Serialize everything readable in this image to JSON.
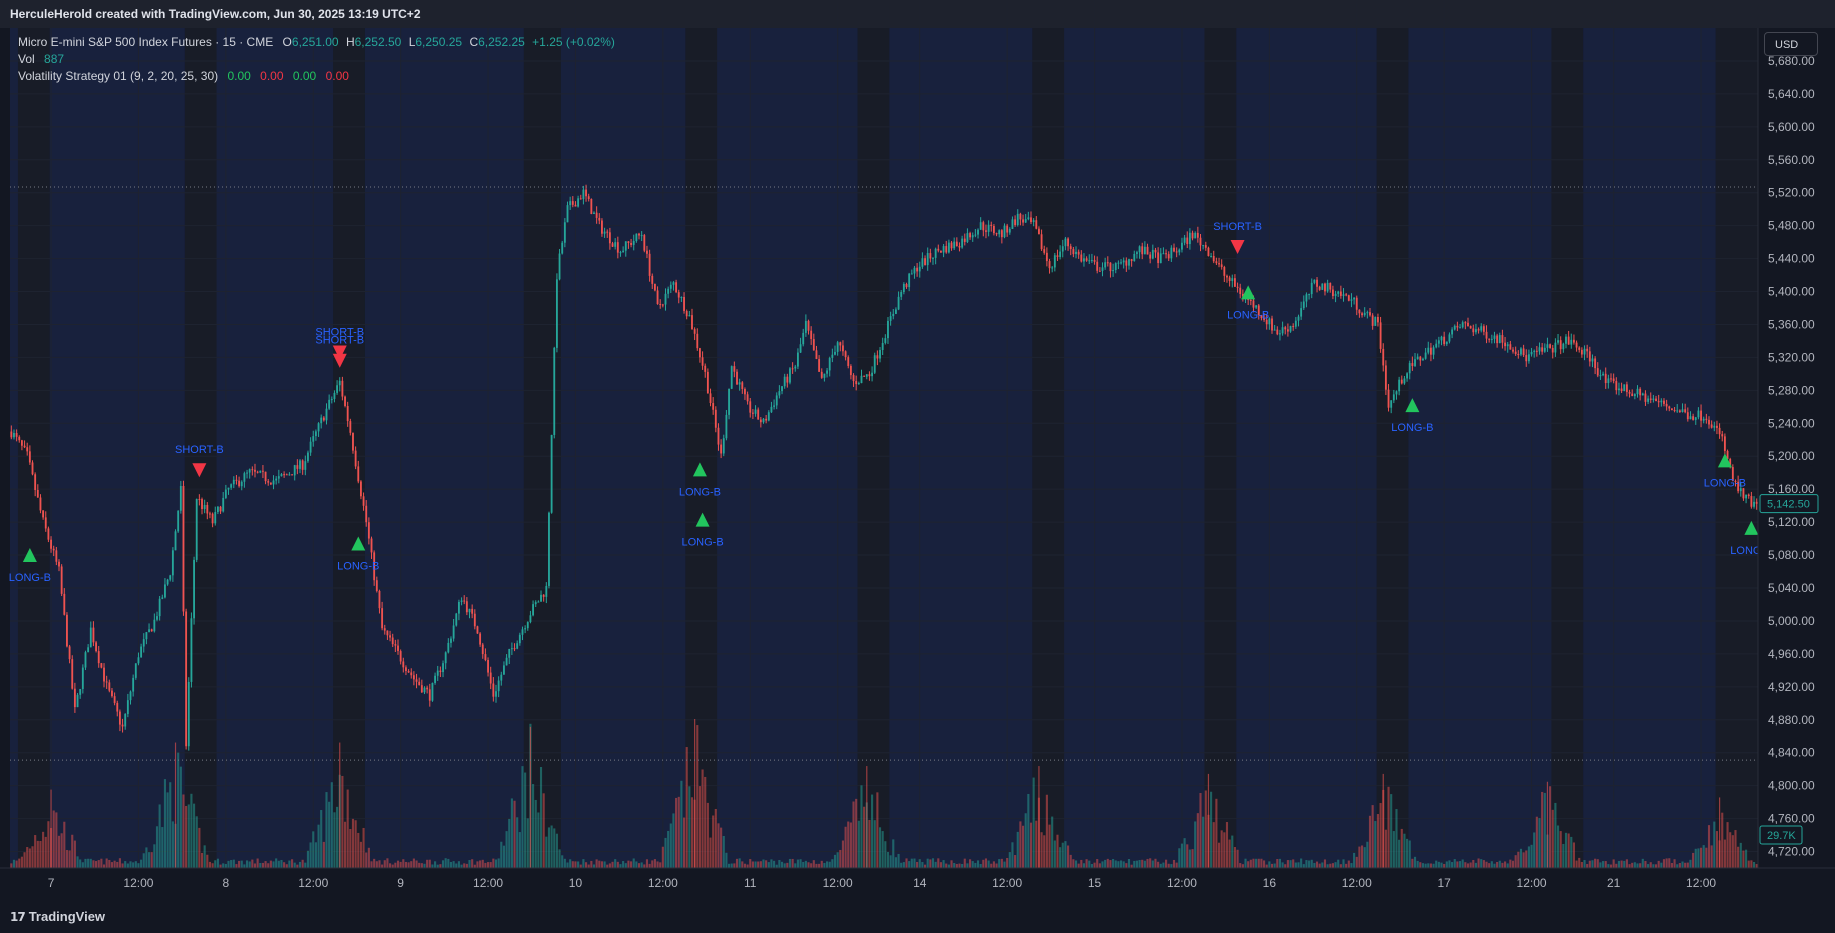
{
  "header": {
    "credit": "HerculeHerold created with TradingView.com, Jun 30, 2025 13:19 UTC+2"
  },
  "legend": {
    "symbol": "Micro E-mini S&P 500 Index Futures · 15 · CME",
    "o_label": "O",
    "o_value": "6,251.00",
    "h_label": "H",
    "h_value": "6,252.50",
    "l_label": "L",
    "l_value": "6,250.25",
    "c_label": "C",
    "c_value": "6,252.25",
    "change": "+1.25 (+0.02%)",
    "vol_label": "Vol",
    "vol_value": "887",
    "strategy": "Volatility Strategy 01 (9, 2, 20, 25, 30)",
    "strategy_values": [
      "0.00",
      "0.00",
      "0.00",
      "0.00"
    ]
  },
  "currency_button": "USD",
  "footer": {
    "brand": "TradingView",
    "logo_glyph": "17"
  },
  "colors": {
    "up": "#26a69a",
    "down": "#ef5350",
    "long_marker": "#22c55e",
    "short_marker": "#f23645",
    "signal_text": "#2962ff",
    "session_band": "#1a2240",
    "grid": "#1e2330"
  },
  "chart_data": {
    "type": "candlestick",
    "y_axis": {
      "range": [
        4700,
        5720
      ],
      "tick_labels": [
        "5,680.00",
        "5,640.00",
        "5,600.00",
        "5,560.00",
        "5,520.00",
        "5,480.00",
        "5,440.00",
        "5,400.00",
        "5,360.00",
        "5,320.00",
        "5,280.00",
        "5,240.00",
        "5,200.00",
        "5,160.00",
        "5,120.00",
        "5,080.00",
        "5,040.00",
        "5,000.00",
        "4,960.00",
        "4,920.00",
        "4,880.00",
        "4,840.00",
        "4,800.00",
        "4,760.00",
        "4,720.00"
      ],
      "tick_values": [
        5680,
        5640,
        5600,
        5560,
        5520,
        5480,
        5440,
        5400,
        5360,
        5320,
        5280,
        5240,
        5200,
        5160,
        5120,
        5080,
        5040,
        5000,
        4960,
        4920,
        4880,
        4840,
        4800,
        4760,
        4720
      ]
    },
    "x_axis": {
      "tick_labels": [
        "7",
        "12:00",
        "8",
        "12:00",
        "9",
        "12:00",
        "10",
        "12:00",
        "11",
        "12:00",
        "14",
        "12:00",
        "15",
        "12:00",
        "16",
        "12:00",
        "17",
        "12:00",
        "21",
        "12:00"
      ],
      "tick_positions_bar_index": [
        15,
        48,
        81,
        114,
        147,
        180,
        213,
        246,
        279,
        312,
        343,
        376,
        409,
        442,
        475,
        508,
        541,
        574,
        605,
        638
      ]
    },
    "last_price_label": "5,142.50",
    "last_volume_label": "29.7K",
    "price_path": [
      [
        0,
        5230
      ],
      [
        6,
        5200
      ],
      [
        12,
        5120
      ],
      [
        18,
        5060
      ],
      [
        24,
        4890
      ],
      [
        30,
        4990
      ],
      [
        36,
        4920
      ],
      [
        42,
        4870
      ],
      [
        48,
        4960
      ],
      [
        54,
        5000
      ],
      [
        60,
        5060
      ],
      [
        64,
        5160
      ],
      [
        66,
        4850
      ],
      [
        70,
        5150
      ],
      [
        76,
        5120
      ],
      [
        82,
        5160
      ],
      [
        90,
        5180
      ],
      [
        100,
        5170
      ],
      [
        110,
        5190
      ],
      [
        118,
        5250
      ],
      [
        124,
        5290
      ],
      [
        128,
        5230
      ],
      [
        134,
        5120
      ],
      [
        140,
        4990
      ],
      [
        146,
        4960
      ],
      [
        152,
        4930
      ],
      [
        158,
        4910
      ],
      [
        164,
        4960
      ],
      [
        170,
        5030
      ],
      [
        176,
        4990
      ],
      [
        182,
        4910
      ],
      [
        188,
        4960
      ],
      [
        196,
        5010
      ],
      [
        202,
        5040
      ],
      [
        206,
        5420
      ],
      [
        210,
        5500
      ],
      [
        216,
        5520
      ],
      [
        222,
        5480
      ],
      [
        230,
        5450
      ],
      [
        238,
        5470
      ],
      [
        244,
        5380
      ],
      [
        250,
        5410
      ],
      [
        256,
        5370
      ],
      [
        262,
        5300
      ],
      [
        268,
        5200
      ],
      [
        272,
        5310
      ],
      [
        278,
        5260
      ],
      [
        284,
        5240
      ],
      [
        290,
        5280
      ],
      [
        296,
        5310
      ],
      [
        300,
        5360
      ],
      [
        306,
        5290
      ],
      [
        312,
        5340
      ],
      [
        318,
        5290
      ],
      [
        324,
        5300
      ],
      [
        330,
        5350
      ],
      [
        336,
        5400
      ],
      [
        342,
        5430
      ],
      [
        350,
        5450
      ],
      [
        358,
        5460
      ],
      [
        366,
        5480
      ],
      [
        374,
        5470
      ],
      [
        380,
        5490
      ],
      [
        386,
        5480
      ],
      [
        392,
        5430
      ],
      [
        398,
        5460
      ],
      [
        404,
        5440
      ],
      [
        410,
        5430
      ],
      [
        418,
        5430
      ],
      [
        426,
        5450
      ],
      [
        434,
        5440
      ],
      [
        440,
        5450
      ],
      [
        446,
        5470
      ],
      [
        452,
        5450
      ],
      [
        458,
        5420
      ],
      [
        464,
        5400
      ],
      [
        470,
        5380
      ],
      [
        478,
        5350
      ],
      [
        484,
        5360
      ],
      [
        492,
        5410
      ],
      [
        500,
        5400
      ],
      [
        506,
        5390
      ],
      [
        512,
        5370
      ],
      [
        516,
        5360
      ],
      [
        520,
        5260
      ],
      [
        526,
        5300
      ],
      [
        532,
        5320
      ],
      [
        540,
        5340
      ],
      [
        548,
        5360
      ],
      [
        556,
        5350
      ],
      [
        564,
        5340
      ],
      [
        572,
        5320
      ],
      [
        580,
        5330
      ],
      [
        588,
        5340
      ],
      [
        596,
        5320
      ],
      [
        602,
        5290
      ],
      [
        610,
        5280
      ],
      [
        618,
        5270
      ],
      [
        626,
        5260
      ],
      [
        634,
        5250
      ],
      [
        640,
        5250
      ],
      [
        646,
        5220
      ],
      [
        650,
        5170
      ],
      [
        654,
        5150
      ],
      [
        658,
        5140
      ]
    ],
    "signals": [
      {
        "text": "LONG-B",
        "type": "long",
        "bar": 7,
        "price": 5080
      },
      {
        "text": "SHORT-B",
        "type": "short",
        "bar": 71,
        "price": 5183
      },
      {
        "text": "SHORT-B",
        "type": "short",
        "bar": 124,
        "price": 5316
      },
      {
        "text": "SHORT-B",
        "type": "short",
        "bar": 124,
        "price": 5326
      },
      {
        "text": "LONG-B",
        "type": "long",
        "bar": 131,
        "price": 5094
      },
      {
        "text": "LONG-B",
        "type": "long",
        "bar": 260,
        "price": 5184
      },
      {
        "text": "LONG-B",
        "type": "long",
        "bar": 261,
        "price": 5123
      },
      {
        "text": "SHORT-B",
        "type": "short",
        "bar": 463,
        "price": 5454
      },
      {
        "text": "LONG-B",
        "type": "long",
        "bar": 467,
        "price": 5399
      },
      {
        "text": "LONG-B",
        "type": "long",
        "bar": 529,
        "price": 5262
      },
      {
        "text": "LONG-B",
        "type": "long",
        "bar": 647,
        "price": 5195
      },
      {
        "text": "LONG-B",
        "type": "long",
        "bar": 657,
        "price": 5113
      }
    ],
    "dotted_levels": [
      5527,
      4831
    ],
    "volume_range": [
      0,
      1100
    ],
    "volume_bumps": [
      {
        "bar": 15,
        "height": 500
      },
      {
        "bar": 62,
        "height": 800
      },
      {
        "bar": 124,
        "height": 800
      },
      {
        "bar": 196,
        "height": 900
      },
      {
        "bar": 258,
        "height": 950
      },
      {
        "bar": 323,
        "height": 650
      },
      {
        "bar": 388,
        "height": 650
      },
      {
        "bar": 452,
        "height": 600
      },
      {
        "bar": 518,
        "height": 600
      },
      {
        "bar": 580,
        "height": 550
      },
      {
        "bar": 645,
        "height": 450
      }
    ],
    "session_bands_bar_ranges": [
      [
        3,
        15
      ],
      [
        66,
        78
      ],
      [
        122,
        134
      ],
      [
        194,
        208
      ],
      [
        255,
        267
      ],
      [
        320,
        332
      ],
      [
        386,
        398
      ],
      [
        451,
        463
      ],
      [
        516,
        528
      ],
      [
        582,
        594
      ],
      [
        644,
        660
      ]
    ]
  }
}
